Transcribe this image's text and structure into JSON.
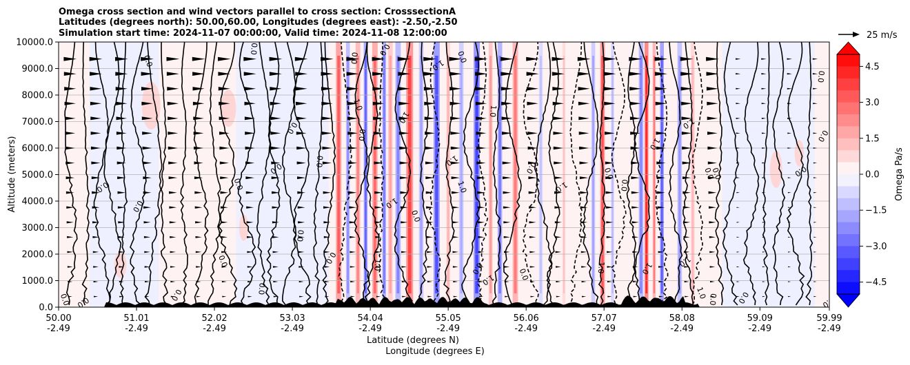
{
  "chart_data": {
    "type": "heatmap",
    "title_lines": [
      "Omega cross section and wind vectors parallel to cross section: CrosssectionA",
      "Latitudes (degrees north): 50.00,60.00, Longitudes (degrees east): -2.50,-2.50",
      "Simulation start time: 2024-11-07 00:00:00, Valid time: 2024-11-08 12:00:00"
    ],
    "ylabel": "Altitude (meters)",
    "xlabel_line1": "Latitude (degrees N)",
    "xlabel_line2": "Longitude (degrees E)",
    "ylim": [
      0,
      10000
    ],
    "y_ticks": [
      "0.0",
      "1000.0",
      "2000.0",
      "3000.0",
      "4000.0",
      "5000.0",
      "6000.0",
      "7000.0",
      "8000.0",
      "9000.0",
      "10000.0"
    ],
    "x_range": [
      50.0,
      59.99
    ],
    "x_ticks": [
      {
        "lat": "50.00",
        "lon": "-2.49"
      },
      {
        "lat": "51.01",
        "lon": "-2.49"
      },
      {
        "lat": "52.02",
        "lon": "-2.49"
      },
      {
        "lat": "53.03",
        "lon": "-2.49"
      },
      {
        "lat": "54.04",
        "lon": "-2.49"
      },
      {
        "lat": "55.05",
        "lon": "-2.49"
      },
      {
        "lat": "56.06",
        "lon": "-2.49"
      },
      {
        "lat": "57.07",
        "lon": "-2.49"
      },
      {
        "lat": "58.08",
        "lon": "-2.49"
      },
      {
        "lat": "59.09",
        "lon": "-2.49"
      },
      {
        "lat": "59.99",
        "lon": "-2.49"
      }
    ],
    "colorbar": {
      "label": "Omega Pa/s",
      "range": [
        -5.0,
        5.0
      ],
      "tick_labels": [
        "4.5",
        "3.0",
        "1.5",
        "0.0",
        "−1.5",
        "−3.0",
        "−4.5"
      ],
      "tick_values": [
        4.5,
        3.0,
        1.5,
        0.0,
        -1.5,
        -3.0,
        -4.5
      ],
      "color_max": "#ff0000",
      "color_zero": "#ffffff",
      "color_min": "#0000ff",
      "levels": 20
    },
    "quiver_key": {
      "label": "25 m/s"
    },
    "contour_labels": [
      {
        "text": "0.0",
        "lat": 51.13,
        "alt": 9250
      },
      {
        "text": "0.0",
        "lat": 52.5,
        "alt": 9750
      },
      {
        "text": "0.0",
        "lat": 51.0,
        "alt": 3850
      },
      {
        "text": "0.0",
        "lat": 50.55,
        "alt": 4600
      },
      {
        "text": "0.0",
        "lat": 52.3,
        "alt": 4600
      },
      {
        "text": "0.0",
        "lat": 53.8,
        "alt": 9400
      },
      {
        "text": "0.0",
        "lat": 54.2,
        "alt": 9750
      },
      {
        "text": "1.0",
        "lat": 54.9,
        "alt": 9200
      },
      {
        "text": "0.0",
        "lat": 55.2,
        "alt": 9400
      },
      {
        "text": "0.0",
        "lat": 59.85,
        "alt": 8700
      },
      {
        "text": "0.0",
        "lat": 59.88,
        "alt": 6500
      },
      {
        "text": "0.0",
        "lat": 59.6,
        "alt": 5200
      },
      {
        "text": "0.0",
        "lat": 58.5,
        "alt": 5000
      },
      {
        "text": "0.0",
        "lat": 53.35,
        "alt": 5500
      },
      {
        "text": "0.0",
        "lat": 53.0,
        "alt": 6800
      },
      {
        "text": "0.0",
        "lat": 52.8,
        "alt": 5300
      },
      {
        "text": "1.0",
        "lat": 53.85,
        "alt": 7600
      },
      {
        "text": "0.0",
        "lat": 53.9,
        "alt": 6500
      },
      {
        "text": "1.0",
        "lat": 54.45,
        "alt": 7200
      },
      {
        "text": "1.0",
        "lat": 55.08,
        "alt": 5600
      },
      {
        "text": "1.0",
        "lat": 55.2,
        "alt": 4500
      },
      {
        "text": "1.0",
        "lat": 55.6,
        "alt": 7400
      },
      {
        "text": "0.0",
        "lat": 56.1,
        "alt": 5300
      },
      {
        "text": "1.0",
        "lat": 56.5,
        "alt": 4600
      },
      {
        "text": "0.0",
        "lat": 57.1,
        "alt": 5000
      },
      {
        "text": "0.0",
        "lat": 57.3,
        "alt": 4600
      },
      {
        "text": "1.0",
        "lat": 57.7,
        "alt": 6200
      },
      {
        "text": "1.0",
        "lat": 58.15,
        "alt": 7000
      },
      {
        "text": "0.0",
        "lat": 58.4,
        "alt": 5000
      },
      {
        "text": "0.0",
        "lat": 53.1,
        "alt": 2700
      },
      {
        "text": "0.0",
        "lat": 53.5,
        "alt": 1900
      },
      {
        "text": "1.0",
        "lat": 54.3,
        "alt": 4000
      },
      {
        "text": "0.0",
        "lat": 54.6,
        "alt": 3400
      },
      {
        "text": "1.0",
        "lat": 54.1,
        "alt": 1600
      },
      {
        "text": "0.0",
        "lat": 55.4,
        "alt": 1500
      },
      {
        "text": "1.0",
        "lat": 55.55,
        "alt": 1100
      },
      {
        "text": "0.0",
        "lat": 56.0,
        "alt": 1200
      },
      {
        "text": "1.0",
        "lat": 57.0,
        "alt": 1500
      },
      {
        "text": "1.0",
        "lat": 57.6,
        "alt": 1500
      },
      {
        "text": "1.0",
        "lat": 58.1,
        "alt": 1800
      },
      {
        "text": "1.0",
        "lat": 58.3,
        "alt": 500
      },
      {
        "text": "0.0",
        "lat": 58.45,
        "alt": 300
      },
      {
        "text": "0.0",
        "lat": 58.85,
        "alt": 400
      },
      {
        "text": "0.0",
        "lat": 59.96,
        "alt": 250
      },
      {
        "text": "0.0",
        "lat": 52.1,
        "alt": 1700
      },
      {
        "text": "0.0",
        "lat": 52.6,
        "alt": 700
      },
      {
        "text": "0.0",
        "lat": 51.5,
        "alt": 500
      },
      {
        "text": "0.0",
        "lat": 50.3,
        "alt": 250
      },
      {
        "text": "0.0",
        "lat": 50.05,
        "alt": 250
      }
    ]
  }
}
